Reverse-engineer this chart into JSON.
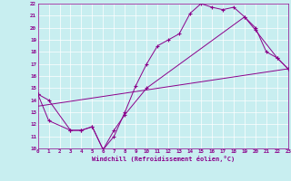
{
  "xlabel": "Windchill (Refroidissement éolien,°C)",
  "bg_color": "#c8eef0",
  "line_color": "#8b008b",
  "grid_color": "#ffffff",
  "xmin": 0,
  "xmax": 23,
  "ymin": 10,
  "ymax": 22,
  "line1_x": [
    0,
    1,
    3,
    4,
    5,
    6,
    7,
    8,
    9,
    10,
    11,
    12,
    13,
    14,
    15,
    16,
    17,
    18,
    19,
    20,
    21,
    22,
    23
  ],
  "line1_y": [
    14.5,
    14.0,
    11.5,
    11.5,
    11.8,
    9.9,
    11.0,
    13.0,
    15.2,
    17.0,
    18.5,
    19.0,
    19.5,
    21.2,
    22.0,
    21.7,
    21.5,
    21.7,
    20.9,
    20.0,
    18.0,
    17.5,
    16.6
  ],
  "line2_x": [
    0,
    1,
    3,
    4,
    5,
    6,
    7,
    8,
    10,
    19,
    20,
    22,
    23
  ],
  "line2_y": [
    14.5,
    12.3,
    11.5,
    11.5,
    11.8,
    9.9,
    11.5,
    12.8,
    15.0,
    20.9,
    19.8,
    17.5,
    16.6
  ],
  "line3_x": [
    0,
    23
  ],
  "line3_y": [
    13.5,
    16.6
  ],
  "xticks": [
    0,
    1,
    2,
    3,
    4,
    5,
    6,
    7,
    8,
    9,
    10,
    11,
    12,
    13,
    14,
    15,
    16,
    17,
    18,
    19,
    20,
    21,
    22,
    23
  ],
  "yticks": [
    10,
    11,
    12,
    13,
    14,
    15,
    16,
    17,
    18,
    19,
    20,
    21,
    22
  ]
}
